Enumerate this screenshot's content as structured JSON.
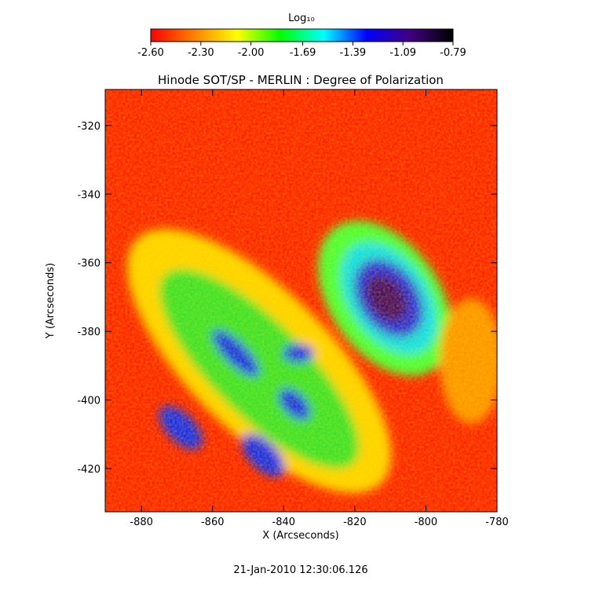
{
  "chart_data": {
    "type": "heatmap",
    "title": "Hinode SOT/SP - MERLIN : Degree of Polarization",
    "xlabel": "X (Arcseconds)",
    "ylabel": "Y (Arcseconds)",
    "xlim": [
      -890.2,
      -780
    ],
    "ylim": [
      -432.6,
      -309.5
    ],
    "xticks": [
      -880,
      -860,
      -840,
      -820,
      -800,
      -780
    ],
    "yticks": [
      -420,
      -400,
      -380,
      -360,
      -340,
      -320
    ],
    "colorbar": {
      "label": "Log₁₀",
      "lim": [
        -2.6,
        -0.79
      ],
      "ticks": [
        {
          "value": -2.6,
          "label": "-2.60"
        },
        {
          "value": -2.3,
          "label": "-2.30"
        },
        {
          "value": -2.0,
          "label": "-2.00"
        },
        {
          "value": -1.69,
          "label": "-1.69"
        },
        {
          "value": -1.39,
          "label": "-1.39"
        },
        {
          "value": -1.09,
          "label": "-1.09"
        },
        {
          "value": -0.79,
          "label": "-0.79"
        }
      ],
      "colors": [
        "#ff0000",
        "#ff8000",
        "#ffff00",
        "#00ff00",
        "#00ffff",
        "#0000ff",
        "#400080",
        "#000000"
      ]
    },
    "date": "21-Jan-2010 12:30:06.126"
  }
}
